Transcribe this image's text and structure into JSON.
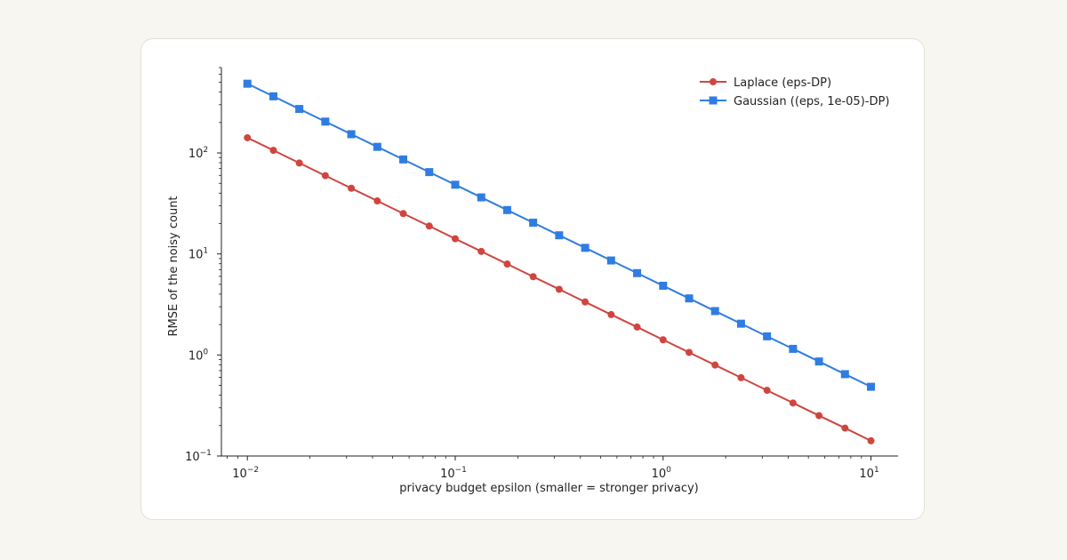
{
  "chart_data": {
    "type": "line",
    "xscale": "log",
    "yscale": "log",
    "xlabel": "privacy budget epsilon  (smaller = stronger privacy)",
    "ylabel": "RMSE of the noisy count",
    "xlim": [
      0.0075,
      13.5
    ],
    "ylim": [
      0.1,
      700
    ],
    "x_ticks": [
      {
        "value": 0.01,
        "base": "10",
        "exp": "−2"
      },
      {
        "value": 0.1,
        "base": "10",
        "exp": "−1"
      },
      {
        "value": 1,
        "base": "10",
        "exp": "0"
      },
      {
        "value": 10,
        "base": "10",
        "exp": "1"
      }
    ],
    "y_ticks": [
      {
        "value": 0.1,
        "base": "10",
        "exp": "−1"
      },
      {
        "value": 1,
        "base": "10",
        "exp": "0"
      },
      {
        "value": 10,
        "base": "10",
        "exp": "1"
      },
      {
        "value": 100,
        "base": "10",
        "exp": "2"
      }
    ],
    "grid": false,
    "legend_position": "top-right",
    "x": [
      0.01,
      0.01334,
      0.01778,
      0.02371,
      0.03162,
      0.04217,
      0.05623,
      0.07499,
      0.1,
      0.1334,
      0.1778,
      0.2371,
      0.3162,
      0.4217,
      0.5623,
      0.7499,
      1,
      1.334,
      1.778,
      2.371,
      3.162,
      4.217,
      5.623,
      7.499,
      10
    ],
    "series": [
      {
        "name": "Laplace (eps-DP)",
        "color": "#d0453f",
        "marker": "circle",
        "values": [
          141.4,
          106.1,
          79.5,
          59.6,
          44.7,
          33.5,
          25.1,
          18.9,
          14.14,
          10.6,
          7.95,
          5.96,
          4.47,
          3.35,
          2.51,
          1.89,
          1.414,
          1.06,
          0.795,
          0.596,
          0.447,
          0.335,
          0.251,
          0.189,
          0.1414
        ]
      },
      {
        "name": "Gaussian ((eps, 1e-05)-DP)",
        "color": "#2f7de1",
        "marker": "square",
        "values": [
          484.5,
          363.3,
          272.4,
          204.3,
          153.2,
          114.9,
          86.2,
          64.6,
          48.45,
          36.3,
          27.2,
          20.4,
          15.3,
          11.5,
          8.62,
          6.46,
          4.845,
          3.63,
          2.72,
          2.04,
          1.53,
          1.15,
          0.862,
          0.646,
          0.4845
        ]
      }
    ]
  }
}
